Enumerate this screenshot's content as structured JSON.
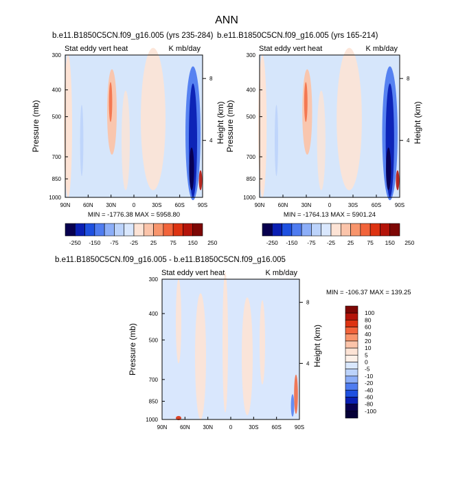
{
  "figure_title": "ANN",
  "chart_data": [
    {
      "type": "heatmap",
      "title": "b.e11.B1850C5CN.f09_g16.005 (yrs 235-284)",
      "subtitle_left": "Stat eddy vert heat",
      "subtitle_right": "K mb/day",
      "xlabel": "",
      "ylabel": "Pressure (mb)",
      "ylabel_right": "Height (km)",
      "x_ticks": [
        "90N",
        "60N",
        "30N",
        "0",
        "30S",
        "60S",
        "90S"
      ],
      "y_ticks": [
        "300",
        "400",
        "500",
        "700",
        "850",
        "1000"
      ],
      "y_ticks_right": [
        "8",
        "4"
      ],
      "stats": "MIN = -1776.38  MAX = 5958.80",
      "colorbar": {
        "orientation": "horizontal",
        "levels": [
          "-250",
          "-150",
          "-75",
          "-25",
          "25",
          "75",
          "150",
          "250"
        ],
        "colors": [
          "#08004f",
          "#0a1fb3",
          "#1e50e0",
          "#4f7cf0",
          "#8caef8",
          "#bcd3fb",
          "#d9e7fd",
          "#fde3d5",
          "#fbc4aa",
          "#f8956c",
          "#f2643b",
          "#dd3312",
          "#b4140a",
          "#7d0705"
        ]
      }
    },
    {
      "type": "heatmap",
      "title": "b.e11.B1850C5CN.f09_g16.005 (yrs 165-214)",
      "subtitle_left": "Stat eddy vert heat",
      "subtitle_right": "K mb/day",
      "xlabel": "",
      "ylabel": "Pressure (mb)",
      "ylabel_right": "Height (km)",
      "x_ticks": [
        "90N",
        "60N",
        "30N",
        "0",
        "30S",
        "60S",
        "90S"
      ],
      "y_ticks": [
        "300",
        "400",
        "500",
        "700",
        "850",
        "1000"
      ],
      "y_ticks_right": [
        "8",
        "4"
      ],
      "stats": "MIN = -1764.13  MAX = 5901.24",
      "colorbar": {
        "orientation": "horizontal",
        "levels": [
          "-250",
          "-150",
          "-75",
          "-25",
          "25",
          "75",
          "150",
          "250"
        ],
        "colors": [
          "#08004f",
          "#0a1fb3",
          "#1e50e0",
          "#4f7cf0",
          "#8caef8",
          "#bcd3fb",
          "#d9e7fd",
          "#fde3d5",
          "#fbc4aa",
          "#f8956c",
          "#f2643b",
          "#dd3312",
          "#b4140a",
          "#7d0705"
        ]
      }
    },
    {
      "type": "heatmap",
      "title": "b.e11.B1850C5CN.f09_g16.005 - b.e11.B1850C5CN.f09_g16.005",
      "subtitle_left": "Stat eddy vert heat",
      "subtitle_right": "K mb/day",
      "xlabel": "",
      "ylabel": "Pressure (mb)",
      "ylabel_right": "Height (km)",
      "x_ticks": [
        "90N",
        "60N",
        "30N",
        "0",
        "30S",
        "60S",
        "90S"
      ],
      "y_ticks": [
        "300",
        "400",
        "500",
        "700",
        "850",
        "1000"
      ],
      "y_ticks_right": [
        "8",
        "4"
      ],
      "stats": "MIN = -106.37  MAX = 139.25",
      "colorbar": {
        "orientation": "vertical",
        "levels": [
          "100",
          "80",
          "60",
          "40",
          "20",
          "10",
          "5",
          "0",
          "-5",
          "-10",
          "-20",
          "-40",
          "-60",
          "-80",
          "-100"
        ],
        "colors": [
          "#7d0705",
          "#b4140a",
          "#dd3312",
          "#f2643b",
          "#f8956c",
          "#fbc4aa",
          "#fde3d5",
          "#fdf0e8",
          "#d9e7fd",
          "#bcd3fb",
          "#8caef8",
          "#4f7cf0",
          "#1e50e0",
          "#0a1fb3",
          "#08004f",
          "#050037"
        ]
      }
    }
  ]
}
